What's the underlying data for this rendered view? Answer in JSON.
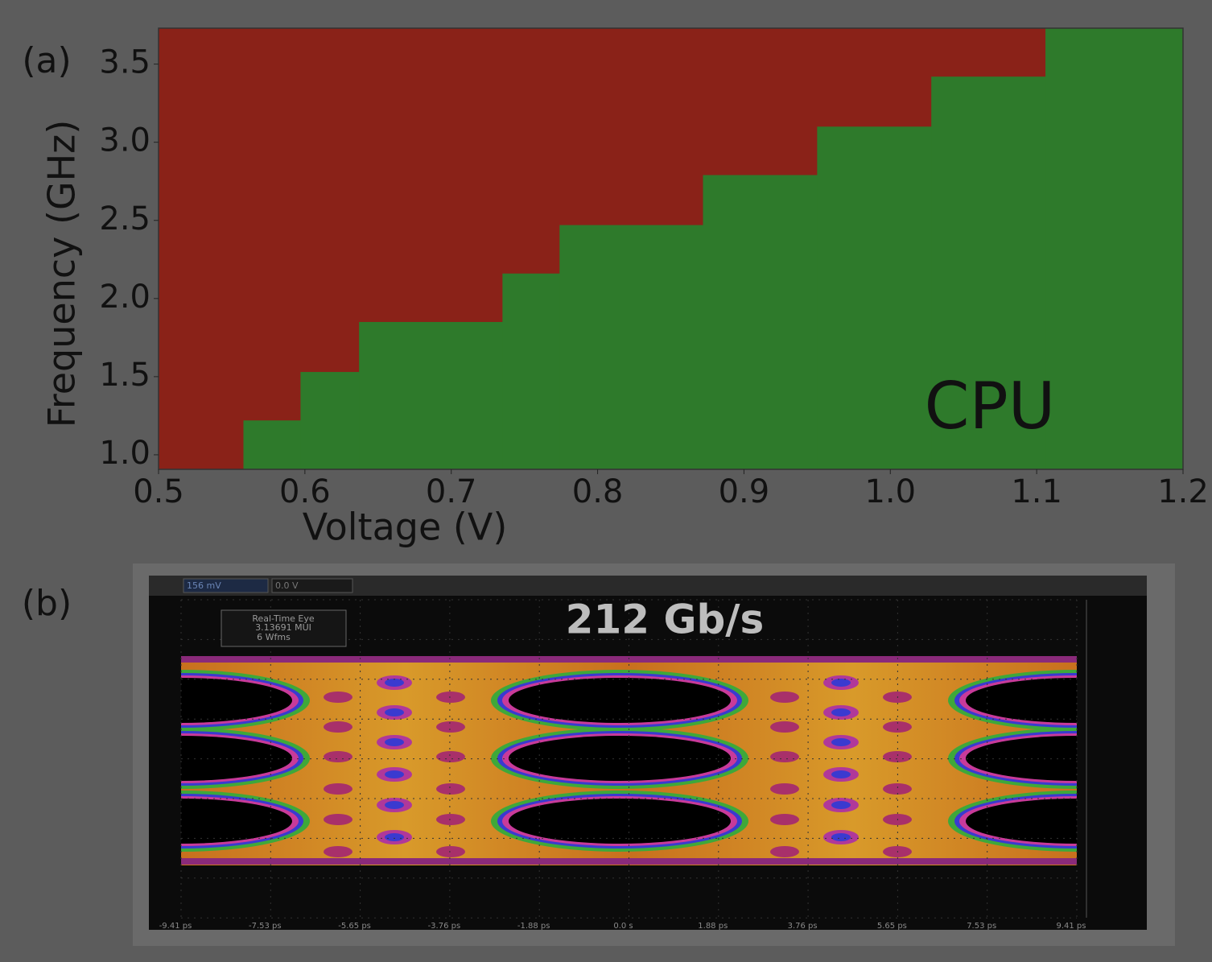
{
  "chart_data": {
    "type": "shmoo",
    "panel_label": "(a)",
    "xlabel": "Voltage (V)",
    "ylabel": "Frequency (GHz)",
    "annotation": "CPU",
    "xlim": [
      0.5,
      1.2
    ],
    "ylim": [
      0.907,
      3.73
    ],
    "xticks": [
      0.5,
      0.6,
      0.7,
      0.8,
      0.9,
      {
        "value": 1,
        "label": "1.0"
      },
      1.1,
      1.2
    ],
    "yticks": [
      {
        "value": 1,
        "label": "1.0"
      },
      1.5,
      {
        "value": 2,
        "label": "2.0"
      },
      2.5,
      {
        "value": 3,
        "label": "3.0"
      },
      3.5
    ],
    "x": [
      0.558,
      0.597,
      0.637,
      0.735,
      0.774,
      0.872,
      0.95,
      1.028,
      1.106
    ],
    "values": [
      1.22,
      1.53,
      1.85,
      2.16,
      2.47,
      2.79,
      3.1,
      3.42,
      3.73
    ],
    "pass_color": "#2e7a2b",
    "fail_color": "#8a2218"
  },
  "eye_panel": {
    "panel_label": "(b)",
    "title": "212 Gb/s",
    "info": [
      "Real-Time Eye",
      "3.13691 MUI",
      "6 Wfms"
    ],
    "toolbar": [
      "156 mV",
      "0.0 V"
    ],
    "time_labels": [
      "-9.41 ps",
      "-7.53 ps",
      "-5.65 ps",
      "-3.76 ps",
      "-1.88 ps",
      "0.0 s",
      "1.88 ps",
      "3.76 ps",
      "5.65 ps",
      "7.53 ps",
      "9.41 ps"
    ]
  }
}
